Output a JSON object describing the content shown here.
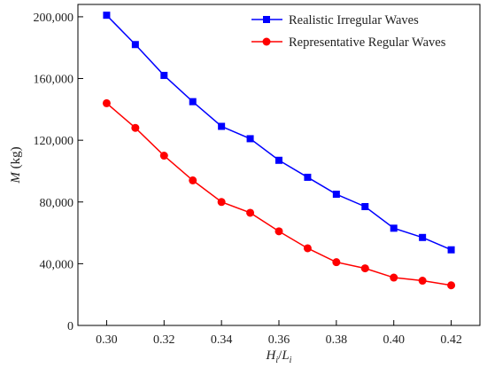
{
  "chart_data": {
    "type": "line",
    "x": [
      0.3,
      0.31,
      0.32,
      0.33,
      0.34,
      0.35,
      0.36,
      0.37,
      0.38,
      0.39,
      0.4,
      0.41,
      0.42
    ],
    "x_tick_labels": [
      "0.30",
      "0.32",
      "0.34",
      "0.36",
      "0.38",
      "0.40",
      "0.42"
    ],
    "y_tick_labels": [
      "0",
      "40,000",
      "80,000",
      "120,000",
      "160,000",
      "200,000"
    ],
    "xlabel": {
      "main1": "H",
      "sub1": "i",
      "slash": "/",
      "main2": "L",
      "sub2": "i"
    },
    "ylabel": {
      "symbol": "M",
      "unit": " (kg)"
    },
    "xlim": [
      0.29,
      0.43
    ],
    "ylim": [
      0,
      208000
    ],
    "legend_placement": "top-right",
    "grid": false,
    "series": [
      {
        "name": "Realistic Irregular Waves",
        "color": "#0000ff",
        "marker": "square",
        "values": [
          201000,
          182000,
          162000,
          145000,
          129000,
          121000,
          107000,
          96000,
          85000,
          77000,
          63000,
          57000,
          49000
        ]
      },
      {
        "name": "Representative Regular Waves",
        "color": "#ff0000",
        "marker": "circle",
        "values": [
          144000,
          128000,
          110000,
          94000,
          80000,
          73000,
          61000,
          50000,
          41000,
          37000,
          31000,
          29000,
          26000
        ]
      }
    ]
  }
}
